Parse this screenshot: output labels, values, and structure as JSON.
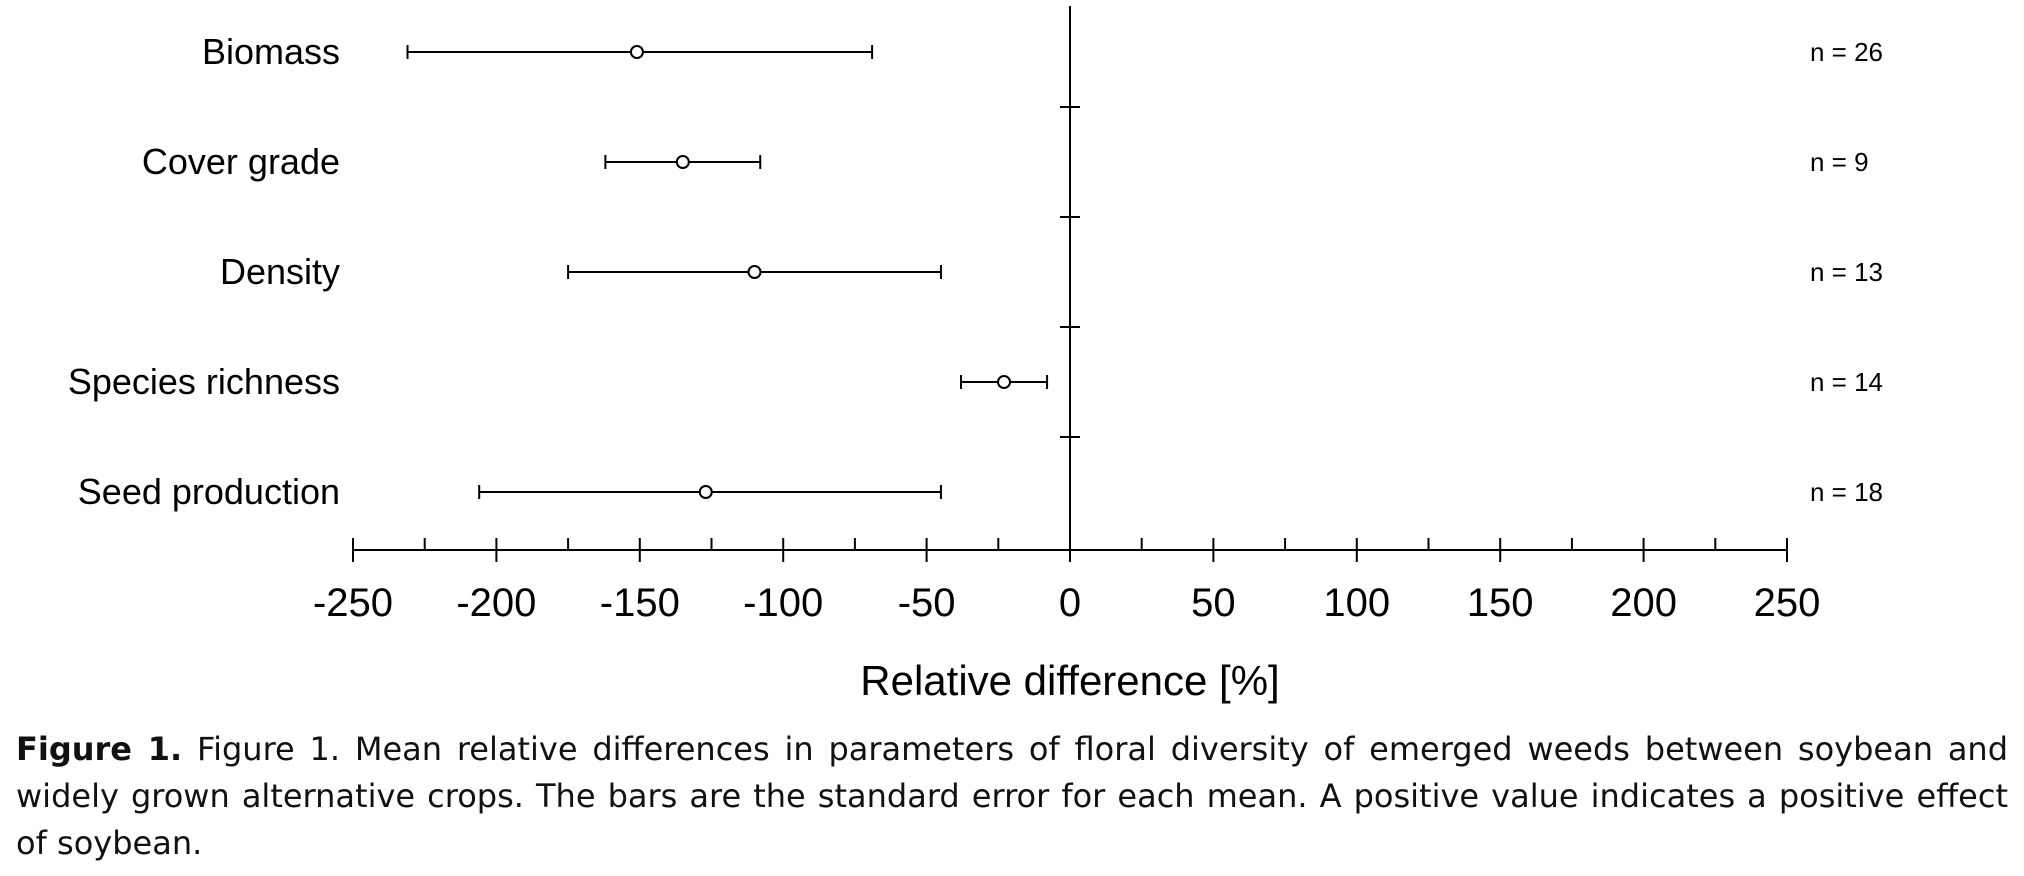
{
  "chart_data": {
    "type": "forest",
    "xlabel": "Relative difference [%]",
    "xlim": [
      -250,
      250
    ],
    "xticks": [
      -250,
      -200,
      -150,
      -100,
      -50,
      0,
      50,
      100,
      150,
      200,
      250
    ],
    "tick_labels": [
      "-250",
      "-200",
      "-150",
      "-100",
      "-50",
      "0",
      "50",
      "100",
      "150",
      "200",
      "250"
    ],
    "grid": false,
    "rows": [
      {
        "label": "Biomass",
        "mean": -151,
        "low": -231,
        "high": -69,
        "n_label": "n = 26"
      },
      {
        "label": "Cover grade",
        "mean": -135,
        "low": -162,
        "high": -108,
        "n_label": "n = 9"
      },
      {
        "label": "Density",
        "mean": -110,
        "low": -175,
        "high": -45,
        "n_label": "n = 13"
      },
      {
        "label": "Species richness",
        "mean": -23,
        "low": -38,
        "high": -8,
        "n_label": "n = 14"
      },
      {
        "label": "Seed production",
        "mean": -127,
        "low": -206,
        "high": -45,
        "n_label": "n = 18"
      }
    ]
  },
  "caption": {
    "prefix": "Figure 1.",
    "text": "Figure 1. Mean relative differences in parameters of floral diversity of emerged weeds between soybean and widely grown alternative crops. The bars are the standard error for each mean. A positive value indicates a positive effect of soybean."
  }
}
